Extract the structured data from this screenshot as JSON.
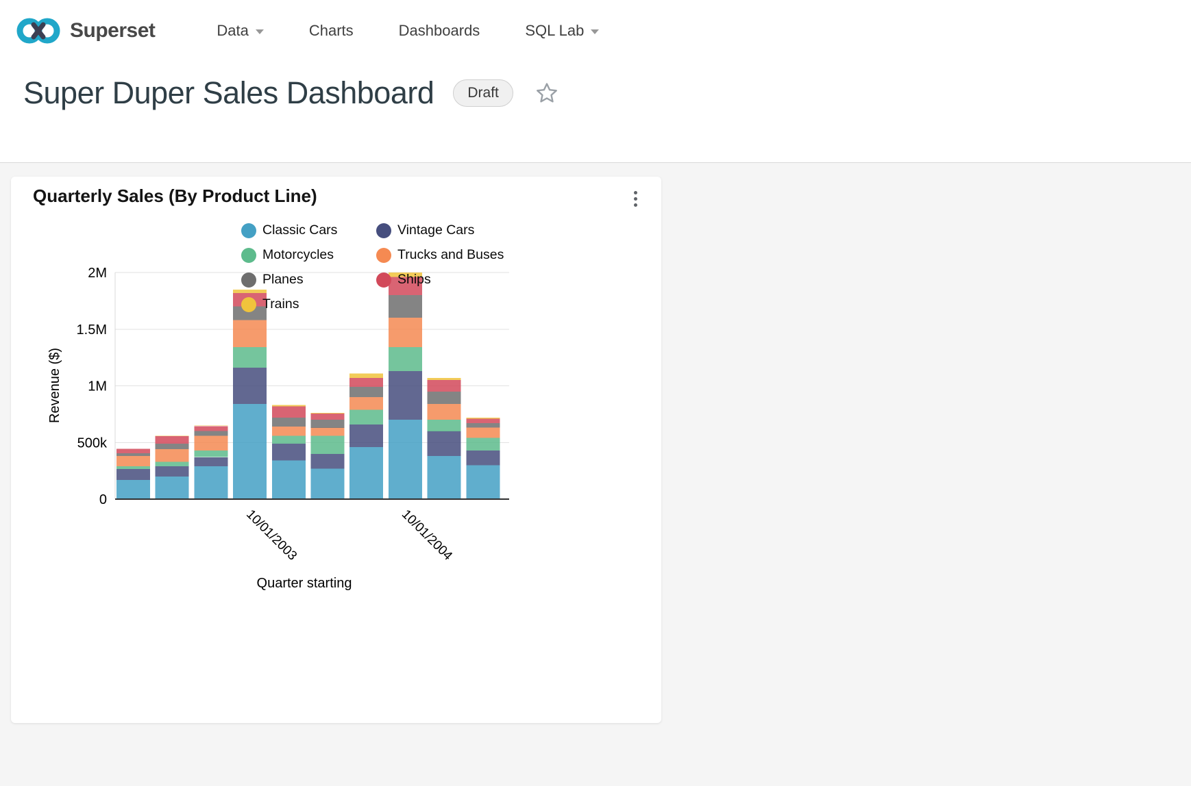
{
  "nav": {
    "brand": "Superset",
    "items": [
      {
        "label": "Data",
        "caret": true
      },
      {
        "label": "Charts",
        "caret": false
      },
      {
        "label": "Dashboards",
        "caret": false
      },
      {
        "label": "SQL Lab",
        "caret": true
      }
    ]
  },
  "header": {
    "title": "Super Duper Sales Dashboard",
    "badge": "Draft"
  },
  "card": {
    "title": "Quarterly Sales (By Product Line)"
  },
  "chart_data": {
    "type": "bar",
    "stacked": true,
    "title": "Quarterly Sales (By Product Line)",
    "xlabel": "Quarter starting",
    "ylabel": "Revenue ($)",
    "ylim": [
      0,
      2000000
    ],
    "grid": true,
    "legend_position": "top",
    "y_ticks": [
      {
        "v": 0,
        "label": "0"
      },
      {
        "v": 500000,
        "label": "500k"
      },
      {
        "v": 1000000,
        "label": "1M"
      },
      {
        "v": 1500000,
        "label": "1.5M"
      },
      {
        "v": 2000000,
        "label": "2M"
      }
    ],
    "x_tick_labels": [
      "",
      "",
      "",
      "10/01/2003",
      "",
      "",
      "",
      "10/01/2004",
      "",
      ""
    ],
    "series": [
      {
        "name": "Classic Cars",
        "color": "#44a0c4",
        "values": [
          170000,
          200000,
          290000,
          840000,
          340000,
          270000,
          460000,
          700000,
          380000,
          300000
        ]
      },
      {
        "name": "Vintage Cars",
        "color": "#464e7e",
        "values": [
          95000,
          90000,
          80000,
          320000,
          150000,
          130000,
          200000,
          430000,
          220000,
          130000
        ]
      },
      {
        "name": "Motorcycles",
        "color": "#5dbb8c",
        "values": [
          25000,
          40000,
          60000,
          180000,
          70000,
          160000,
          130000,
          210000,
          100000,
          110000
        ]
      },
      {
        "name": "Trucks and Buses",
        "color": "#f58a52",
        "values": [
          90000,
          110000,
          130000,
          240000,
          80000,
          70000,
          110000,
          260000,
          140000,
          90000
        ]
      },
      {
        "name": "Planes",
        "color": "#6e6e6e",
        "values": [
          25000,
          50000,
          40000,
          120000,
          80000,
          70000,
          90000,
          200000,
          110000,
          40000
        ]
      },
      {
        "name": "Ships",
        "color": "#d2495a",
        "values": [
          40000,
          65000,
          45000,
          120000,
          100000,
          55000,
          80000,
          160000,
          100000,
          40000
        ]
      },
      {
        "name": "Trains",
        "color": "#f0c33c",
        "values": [
          0,
          5000,
          5000,
          30000,
          10000,
          5000,
          40000,
          40000,
          20000,
          10000
        ]
      }
    ]
  }
}
